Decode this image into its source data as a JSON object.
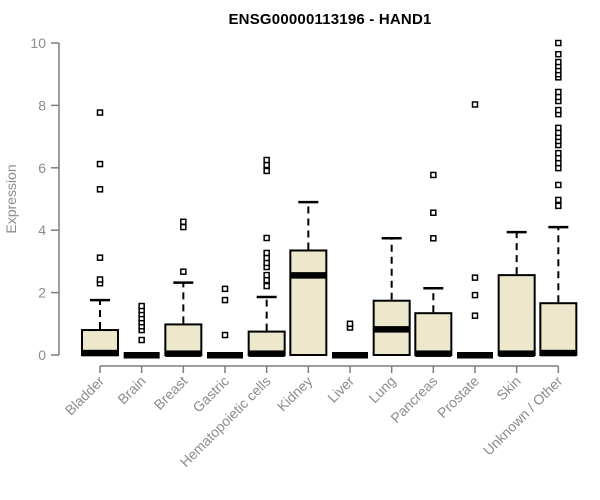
{
  "chart_data": {
    "type": "boxplot",
    "title": "ENSG00000113196 - HAND1",
    "ylabel": "Expression",
    "xlabel": "",
    "ylim": [
      0,
      10
    ],
    "yticks": [
      0,
      2,
      4,
      6,
      8,
      10
    ],
    "grid": false,
    "legend": false,
    "categories": [
      "Bladder",
      "Brain",
      "Breast",
      "Gastric",
      "Hematopoietic cells",
      "Kidney",
      "Liver",
      "Lung",
      "Pancreas",
      "Prostate",
      "Skin",
      "Unknown / Other"
    ],
    "boxes": [
      {
        "category": "Bladder",
        "q1": 0,
        "median": 0.07,
        "q3": 0.8,
        "whisker_low": 0,
        "whisker_high": 1.76,
        "outliers": [
          2.3,
          2.42,
          3.12,
          5.31,
          6.12,
          7.77
        ]
      },
      {
        "category": "Brain",
        "q1": 0,
        "median": 0,
        "q3": 0,
        "whisker_low": 0,
        "whisker_high": 0,
        "outliers": [
          0.48,
          0.8,
          0.92,
          1.05,
          1.18,
          1.31,
          1.44,
          1.57
        ]
      },
      {
        "category": "Breast",
        "q1": 0,
        "median": 0.05,
        "q3": 0.98,
        "whisker_low": 0,
        "whisker_high": 2.32,
        "outliers": [
          2.67,
          4.1,
          4.27
        ]
      },
      {
        "category": "Gastric",
        "q1": 0,
        "median": 0,
        "q3": 0,
        "whisker_low": 0,
        "whisker_high": 0,
        "outliers": [
          0.64,
          1.76,
          2.12
        ]
      },
      {
        "category": "Hematopoietic cells",
        "q1": 0,
        "median": 0.05,
        "q3": 0.75,
        "whisker_low": 0,
        "whisker_high": 1.86,
        "outliers": [
          2.21,
          2.4,
          2.56,
          2.82,
          2.95,
          3.11,
          3.27,
          3.75,
          5.9,
          6.09,
          6.25
        ]
      },
      {
        "category": "Kidney",
        "q1": 0,
        "median": 2.56,
        "q3": 3.35,
        "whisker_low": 0,
        "whisker_high": 4.9,
        "outliers": []
      },
      {
        "category": "Liver",
        "q1": 0,
        "median": 0,
        "q3": 0,
        "whisker_low": 0,
        "whisker_high": 0,
        "outliers": [
          0.88,
          1.0
        ]
      },
      {
        "category": "Lung",
        "q1": 0,
        "median": 0.83,
        "q3": 1.74,
        "whisker_low": 0,
        "whisker_high": 3.74,
        "outliers": []
      },
      {
        "category": "Pancreas",
        "q1": 0,
        "median": 0.05,
        "q3": 1.34,
        "whisker_low": 0,
        "whisker_high": 2.14,
        "outliers": [
          3.74,
          4.56,
          5.77
        ]
      },
      {
        "category": "Prostate",
        "q1": 0,
        "median": 0,
        "q3": 0,
        "whisker_low": 0,
        "whisker_high": 0,
        "outliers": [
          1.26,
          1.92,
          2.48,
          8.03
        ]
      },
      {
        "category": "Skin",
        "q1": 0,
        "median": 0.05,
        "q3": 2.56,
        "whisker_low": 0,
        "whisker_high": 3.94,
        "outliers": []
      },
      {
        "category": "Unknown / Other",
        "q1": 0,
        "median": 0.07,
        "q3": 1.66,
        "whisker_low": 0,
        "whisker_high": 4.1,
        "outliers": [
          4.78,
          4.97,
          5.45,
          5.99,
          6.15,
          6.31,
          6.47,
          6.73,
          6.86,
          6.99,
          7.12,
          7.28,
          7.72,
          7.85,
          8.14,
          8.27,
          8.43,
          8.9,
          9.0,
          9.13,
          9.26,
          9.39,
          9.64,
          10.0
        ]
      }
    ],
    "colors": {
      "box_fill": "#EDE8CC",
      "box_border": "#000000",
      "median": "#000000",
      "whisker": "#000000",
      "outlier_stroke": "#000000",
      "outlier_fill": "#FFFFFF",
      "axis_line": "#7D7D7D",
      "axis_text": "#8C8C8C",
      "title": "#000000",
      "background": "#FFFFFF"
    }
  }
}
